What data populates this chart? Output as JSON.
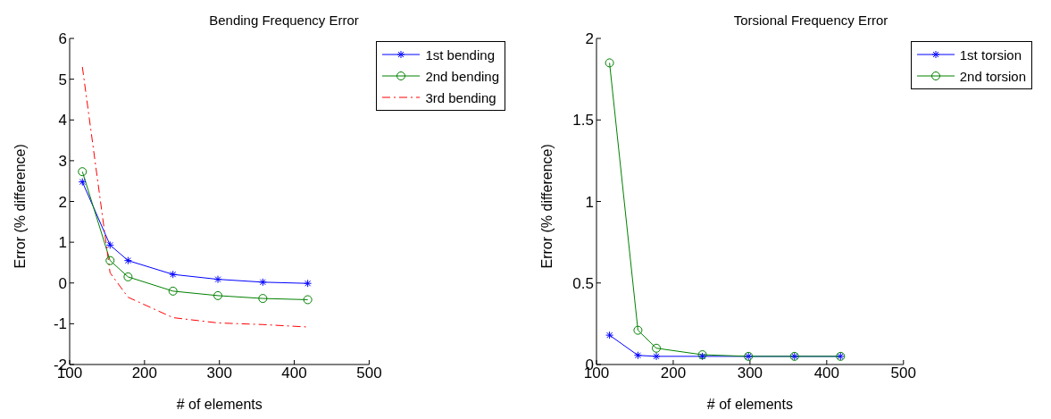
{
  "chart_data": [
    {
      "type": "line",
      "title": "Bending Frequency Error",
      "xlabel": "# of elements",
      "ylabel": "Error (% difference)",
      "x": [
        117,
        154,
        178,
        238,
        298,
        358,
        418
      ],
      "xlim": [
        100,
        500
      ],
      "xticks": [
        100,
        200,
        300,
        400,
        500
      ],
      "ylim": [
        -2,
        6
      ],
      "yticks": [
        -2,
        -1,
        0,
        1,
        2,
        3,
        4,
        5,
        6
      ],
      "legend": "top right",
      "grid": false,
      "series": [
        {
          "name": "1st bending",
          "color": "#0000ff",
          "marker": "cross",
          "line_style": "solid",
          "values": [
            2.48,
            0.93,
            0.55,
            0.21,
            0.09,
            0.02,
            -0.01
          ]
        },
        {
          "name": "2nd bending",
          "color": "#008000",
          "marker": "circle",
          "line_style": "solid",
          "values": [
            2.73,
            0.55,
            0.15,
            -0.2,
            -0.31,
            -0.38,
            -0.41
          ]
        },
        {
          "name": "3rd bending",
          "color": "#ff0000",
          "marker": "none",
          "line_style": "dashed",
          "values": [
            5.3,
            0.25,
            -0.35,
            -0.85,
            -0.98,
            -1.02,
            -1.08
          ]
        }
      ]
    },
    {
      "type": "line",
      "title": "Torsional Frequency Error",
      "xlabel": "# of elements",
      "ylabel": "Error (% difference)",
      "x": [
        117,
        154,
        178,
        238,
        298,
        358,
        418
      ],
      "xlim": [
        100,
        500
      ],
      "xticks": [
        100,
        200,
        300,
        400,
        500
      ],
      "ylim": [
        0,
        2
      ],
      "yticks": [
        0,
        0.5,
        1,
        1.5,
        2
      ],
      "legend": "top right",
      "grid": false,
      "series": [
        {
          "name": "1st torsion",
          "color": "#0000ff",
          "marker": "cross",
          "line_style": "solid",
          "values": [
            0.18,
            0.056,
            0.05,
            0.05,
            0.05,
            0.05,
            0.05
          ]
        },
        {
          "name": "2nd torsion",
          "color": "#008000",
          "marker": "circle",
          "line_style": "solid",
          "values": [
            1.85,
            0.21,
            0.1,
            0.06,
            0.05,
            0.05,
            0.05
          ]
        }
      ]
    }
  ]
}
